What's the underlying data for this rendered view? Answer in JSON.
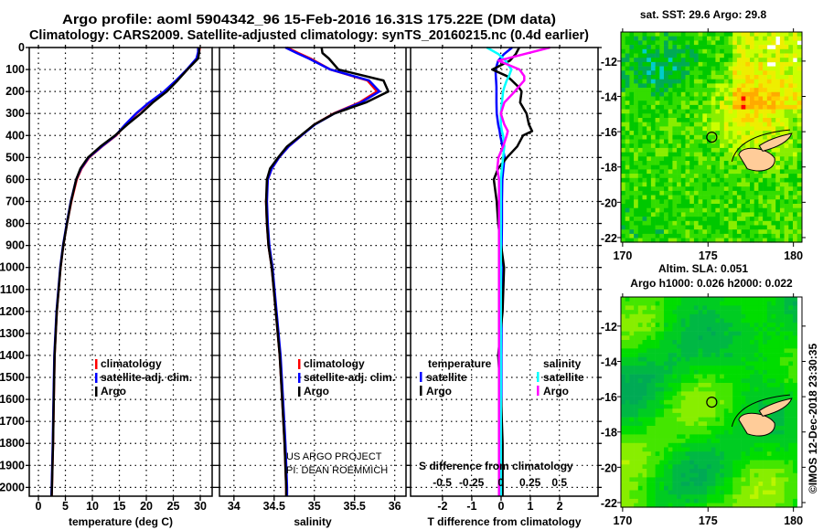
{
  "title_line1": "Argo profile: aoml 5904342_96 15-Feb-2016 16.31S 175.22E (DM data)",
  "title_line2": "Climatology: CARS2009. Satellite-adjusted climatology: synTS_20160215.nc (0.4d earlier)",
  "credit_line1": "US ARGO PROJECT",
  "credit_line2": "PI: DEAN ROEMMICH",
  "imos_stamp": "©IMOS 12-Dec-2018 23:30:35",
  "colors": {
    "climatology": "#ff0000",
    "satellite": "#0000ff",
    "argo": "#000000",
    "s_satellite": "#00ffff",
    "s_argo": "#ff00ff",
    "land": "#ffcc99"
  },
  "chart_data": [
    {
      "type": "line",
      "xlabel": "temperature (deg C)",
      "xlim": [
        -1.7,
        32.2
      ],
      "ylim": [
        0,
        2040
      ],
      "xticks": [
        0,
        5,
        10,
        15,
        20,
        25,
        30
      ],
      "xticklabels": [
        "0",
        "5",
        "10",
        "15",
        "20",
        "25",
        "30"
      ],
      "yticks": [
        0,
        100,
        200,
        300,
        400,
        500,
        600,
        700,
        800,
        900,
        1000,
        1100,
        1200,
        1300,
        1400,
        1500,
        1600,
        1700,
        1800,
        1900,
        2000
      ],
      "yticklabels": [
        "0",
        "100",
        "200",
        "300",
        "400",
        "500",
        "600",
        "700",
        "800",
        "900",
        "1000",
        "1100",
        "1200",
        "1300",
        "1400",
        "1500",
        "1600",
        "1700",
        "1800",
        "1900",
        "2000"
      ],
      "legend": [
        "climatology",
        "satellite-adj. clim.",
        "Argo"
      ],
      "depth": [
        0,
        20,
        50,
        100,
        150,
        200,
        250,
        300,
        350,
        400,
        450,
        500,
        550,
        600,
        700,
        800,
        900,
        1000,
        1200,
        1400,
        1600,
        1800,
        2000,
        2040
      ],
      "series": [
        {
          "name": "climatology",
          "color": "#ff0000",
          "values": [
            29.9,
            29.8,
            29.4,
            27.6,
            25.6,
            23.4,
            20.6,
            18.2,
            16.2,
            14.4,
            11.8,
            9.4,
            8.0,
            7.1,
            6.1,
            5.3,
            4.6,
            4.1,
            3.4,
            3.0,
            2.85,
            2.7,
            2.5,
            2.45
          ]
        },
        {
          "name": "satellite-adj. clim.",
          "color": "#0000ff",
          "values": [
            29.6,
            29.6,
            29.3,
            27.5,
            25.5,
            23.3,
            20.5,
            18.1,
            16.1,
            14.3,
            11.7,
            9.3,
            7.9,
            7.0,
            6.0,
            5.25,
            4.55,
            4.05,
            3.35,
            2.95,
            2.8,
            2.65,
            2.45,
            2.4
          ]
        },
        {
          "name": "Argo",
          "color": "#000000",
          "values": [
            29.8,
            29.8,
            29.6,
            27.6,
            25.8,
            23.8,
            21.2,
            19.0,
            16.5,
            14.2,
            11.5,
            9.2,
            7.8,
            7.0,
            6.05,
            5.3,
            4.6,
            4.1,
            3.4,
            3.0,
            2.85,
            2.7,
            2.5,
            2.45
          ]
        }
      ]
    },
    {
      "type": "line",
      "xlabel": "salinity",
      "xlim": [
        33.82,
        36.14
      ],
      "ylim": [
        0,
        2040
      ],
      "xticks": [
        34,
        34.5,
        35,
        35.5,
        36
      ],
      "xticklabels": [
        "34",
        "34.5",
        "35",
        "35.5",
        "36"
      ],
      "legend": [
        "climatology",
        "satellite-adj. clim.",
        "Argo"
      ],
      "depth": [
        0,
        25,
        50,
        100,
        150,
        200,
        250,
        300,
        350,
        400,
        450,
        500,
        550,
        600,
        700,
        800,
        900,
        1000,
        1200,
        1400,
        1600,
        1800,
        2000,
        2040
      ],
      "series": [
        {
          "name": "climatology",
          "color": "#ff0000",
          "values": [
            34.66,
            34.8,
            34.95,
            35.2,
            35.66,
            35.78,
            35.56,
            35.24,
            35.0,
            34.84,
            34.68,
            34.56,
            34.47,
            34.42,
            34.4,
            34.41,
            34.43,
            34.47,
            34.52,
            34.57,
            34.6,
            34.63,
            34.65,
            34.65
          ]
        },
        {
          "name": "satellite-adj. clim.",
          "color": "#0000ff",
          "values": [
            34.64,
            34.78,
            34.93,
            35.2,
            35.68,
            35.81,
            35.58,
            35.25,
            35.01,
            34.84,
            34.68,
            34.56,
            34.47,
            34.42,
            34.41,
            34.42,
            34.44,
            34.48,
            34.53,
            34.58,
            34.61,
            34.64,
            34.66,
            34.66
          ]
        },
        {
          "name": "Argo",
          "color": "#000000",
          "values": [
            35.09,
            35.1,
            35.18,
            35.3,
            35.86,
            35.92,
            35.64,
            35.25,
            35.0,
            34.83,
            34.66,
            34.55,
            34.45,
            34.41,
            34.4,
            34.41,
            34.43,
            34.47,
            34.52,
            34.57,
            34.6,
            34.63,
            34.65,
            34.65
          ]
        }
      ]
    },
    {
      "type": "line",
      "xlabel": "T difference from climatology",
      "x2label": "S difference from climatology",
      "xlim": [
        -3.09,
        3.31
      ],
      "x2lim": [
        -0.77,
        0.83
      ],
      "ylim": [
        0,
        2040
      ],
      "xticks": [
        -2,
        -1,
        0,
        1,
        2
      ],
      "xticklabels": [
        "-2",
        "-1",
        "0",
        "1",
        "2"
      ],
      "x2ticks": [
        -0.5,
        -0.25,
        0,
        0.25,
        0.5
      ],
      "x2ticklabels": [
        "-0.5",
        "-0.25",
        "0",
        "0.25",
        "0.5"
      ],
      "legend_t": {
        "heading": "temperature",
        "items": [
          "satellite",
          "Argo"
        ]
      },
      "legend_s": {
        "heading": "salinity",
        "items": [
          "satellite",
          "Argo"
        ]
      },
      "depth": [
        0,
        30,
        60,
        100,
        130,
        150,
        180,
        200,
        250,
        300,
        350,
        380,
        400,
        450,
        500,
        550,
        600,
        700,
        800,
        900,
        1000,
        1200,
        1400,
        1600,
        1800,
        2000,
        2040
      ],
      "series": [
        {
          "name": "T satellite",
          "axis": "T",
          "color": "#0000ff",
          "values": [
            0.38,
            0.1,
            -0.1,
            -0.19,
            -0.18,
            -0.17,
            -0.16,
            -0.16,
            -0.16,
            -0.15,
            -0.1,
            -0.05,
            -0.03,
            0.05,
            0.12,
            0.08,
            0.04,
            0.03,
            0.03,
            0.02,
            0.02,
            0.02,
            0.01,
            0.01,
            0.01,
            0.01,
            0.01
          ]
        },
        {
          "name": "T Argo",
          "axis": "T",
          "color": "#000000",
          "values": [
            0.62,
            0.5,
            0.3,
            -0.3,
            0.2,
            0.37,
            0.6,
            0.7,
            0.65,
            0.87,
            0.95,
            1.06,
            0.75,
            0.55,
            0.2,
            -0.1,
            -0.25,
            -0.15,
            -0.1,
            0.0,
            0.1,
            0.05,
            -0.1,
            0.0,
            0.05,
            0.05,
            0.05
          ]
        },
        {
          "name": "S satellite",
          "axis": "S",
          "color": "#00ffff",
          "values": [
            -0.12,
            -0.02,
            0.04,
            0.09,
            0.07,
            0.05,
            0.03,
            0.02,
            0.01,
            0.0,
            0.0,
            0.01,
            0.02,
            0.03,
            0.02,
            0.01,
            0.0,
            0.0,
            0.0,
            0.0,
            0.0,
            0.0,
            0.0,
            0.0,
            0.0,
            0.0,
            0.0
          ]
        },
        {
          "name": "S Argo",
          "axis": "S",
          "color": "#ff00ff",
          "values": [
            0.42,
            0.2,
            -0.02,
            0.16,
            0.2,
            0.2,
            0.15,
            0.12,
            0.03,
            0.0,
            0.03,
            0.06,
            0.05,
            0.02,
            -0.02,
            -0.03,
            -0.015,
            -0.015,
            -0.015,
            -0.015,
            -0.015,
            -0.015,
            -0.015,
            -0.015,
            -0.015,
            -0.015,
            -0.015
          ]
        }
      ]
    },
    {
      "type": "heatmap",
      "title": "sat. SST: 29.6 Argo: 29.8",
      "lon_range": [
        169.9,
        180.5
      ],
      "lat_range": [
        -10.35,
        -22.26
      ],
      "xticks": [
        170,
        175,
        180
      ],
      "xticklabels": [
        "170",
        "175",
        "180"
      ],
      "yticks": [
        -12,
        -14,
        -16,
        -18,
        -20,
        -22
      ],
      "yticklabels": [
        "-12",
        "-14",
        "-16",
        "-18",
        "-20",
        "-22"
      ],
      "argo_position": {
        "lon": 175.22,
        "lat": -16.31
      }
    },
    {
      "type": "heatmap",
      "title_line1": "Altim. SLA: 0.051",
      "title_line2": "Argo h1000: 0.026 h2000: 0.022",
      "lon_range": [
        169.9,
        180.5
      ],
      "lat_range": [
        -10.35,
        -22.26
      ],
      "xticks": [
        170,
        175,
        180
      ],
      "xticklabels": [
        "170",
        "175",
        "180"
      ],
      "yticks": [
        -12,
        -14,
        -16,
        -18,
        -20,
        -22
      ],
      "yticklabels": [
        "-12",
        "-14",
        "-16",
        "-18",
        "-20",
        "-22"
      ],
      "argo_position": {
        "lon": 175.22,
        "lat": -16.31
      }
    }
  ]
}
